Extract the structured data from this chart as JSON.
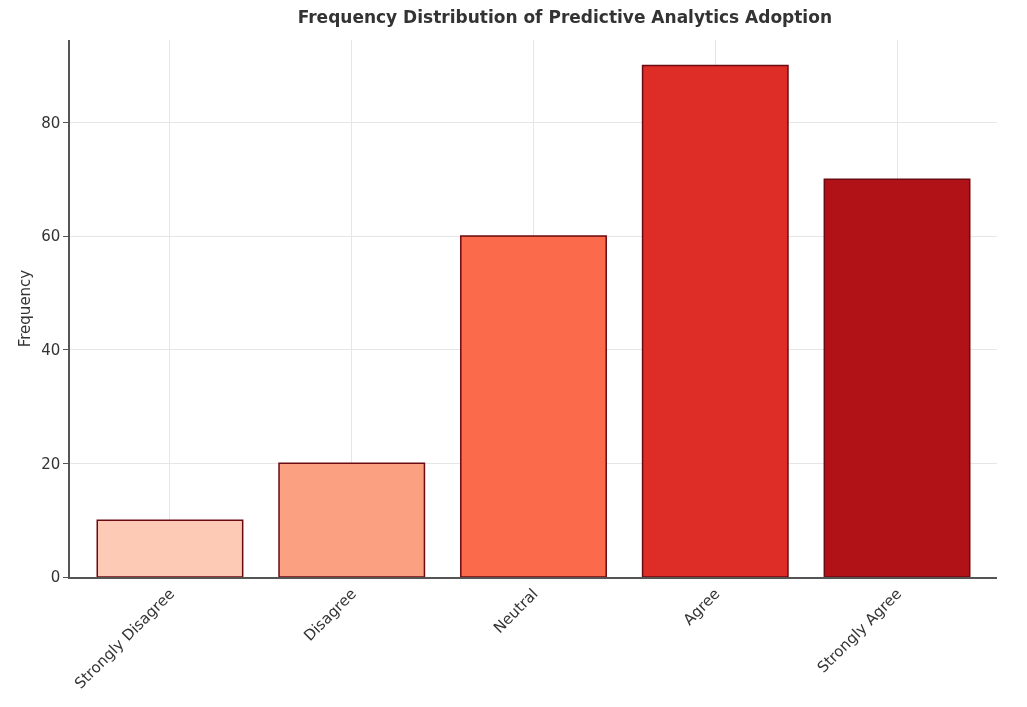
{
  "chart_data": {
    "type": "bar",
    "title": "Frequency Distribution of Predictive Analytics Adoption",
    "ylabel": "Frequency",
    "categories": [
      "Strongly Disagree",
      "Disagree",
      "Neutral",
      "Agree",
      "Strongly Agree"
    ],
    "values": [
      10,
      20,
      60,
      90,
      70
    ],
    "colors": [
      "#fdcab5",
      "#fca082",
      "#fb6a4a",
      "#de2d26",
      "#b11218"
    ],
    "ylim": [
      0,
      94.5
    ],
    "yticks": [
      0,
      20,
      40,
      60,
      80
    ],
    "grid": true
  }
}
